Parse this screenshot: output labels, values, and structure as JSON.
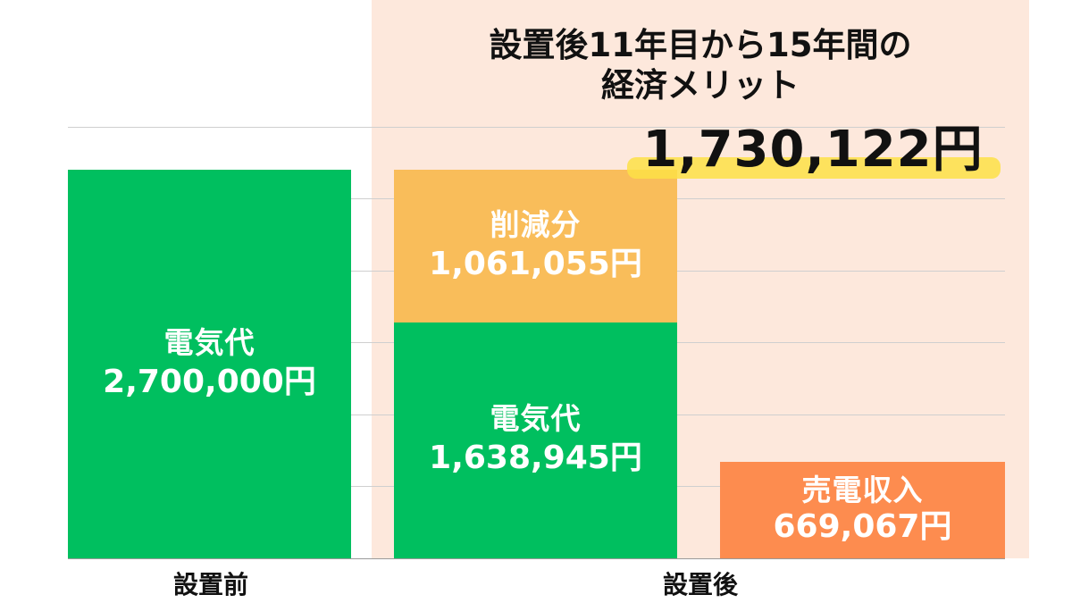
{
  "chart_data": {
    "type": "bar",
    "categories": [
      "設置前",
      "設置後"
    ],
    "bars": [
      {
        "category": "設置前",
        "stack": [
          {
            "label": "電気代",
            "value": 2700000,
            "value_text": "2,700,000円",
            "color": "#00bf5f"
          }
        ]
      },
      {
        "category": "設置後",
        "stack": [
          {
            "label": "電気代",
            "value": 1638945,
            "value_text": "1,638,945円",
            "color": "#00bf5f"
          },
          {
            "label": "削減分",
            "value": 1061055,
            "value_text": "1,061,055円",
            "color": "#f9bd5a"
          }
        ]
      },
      {
        "category": "設置後",
        "stack": [
          {
            "label": "売電収入",
            "value": 669067,
            "value_text": "669,067円",
            "color": "#fd8c4f"
          }
        ]
      }
    ],
    "ylim": [
      0,
      3000000
    ],
    "grid": true,
    "annotation": {
      "title_lines": [
        "設置後11年目から15年間の",
        "経済メリット"
      ],
      "value_text": "1,730,122円"
    }
  },
  "colors": {
    "panel_background": "#fde8dc",
    "highlight": "#fde047"
  }
}
